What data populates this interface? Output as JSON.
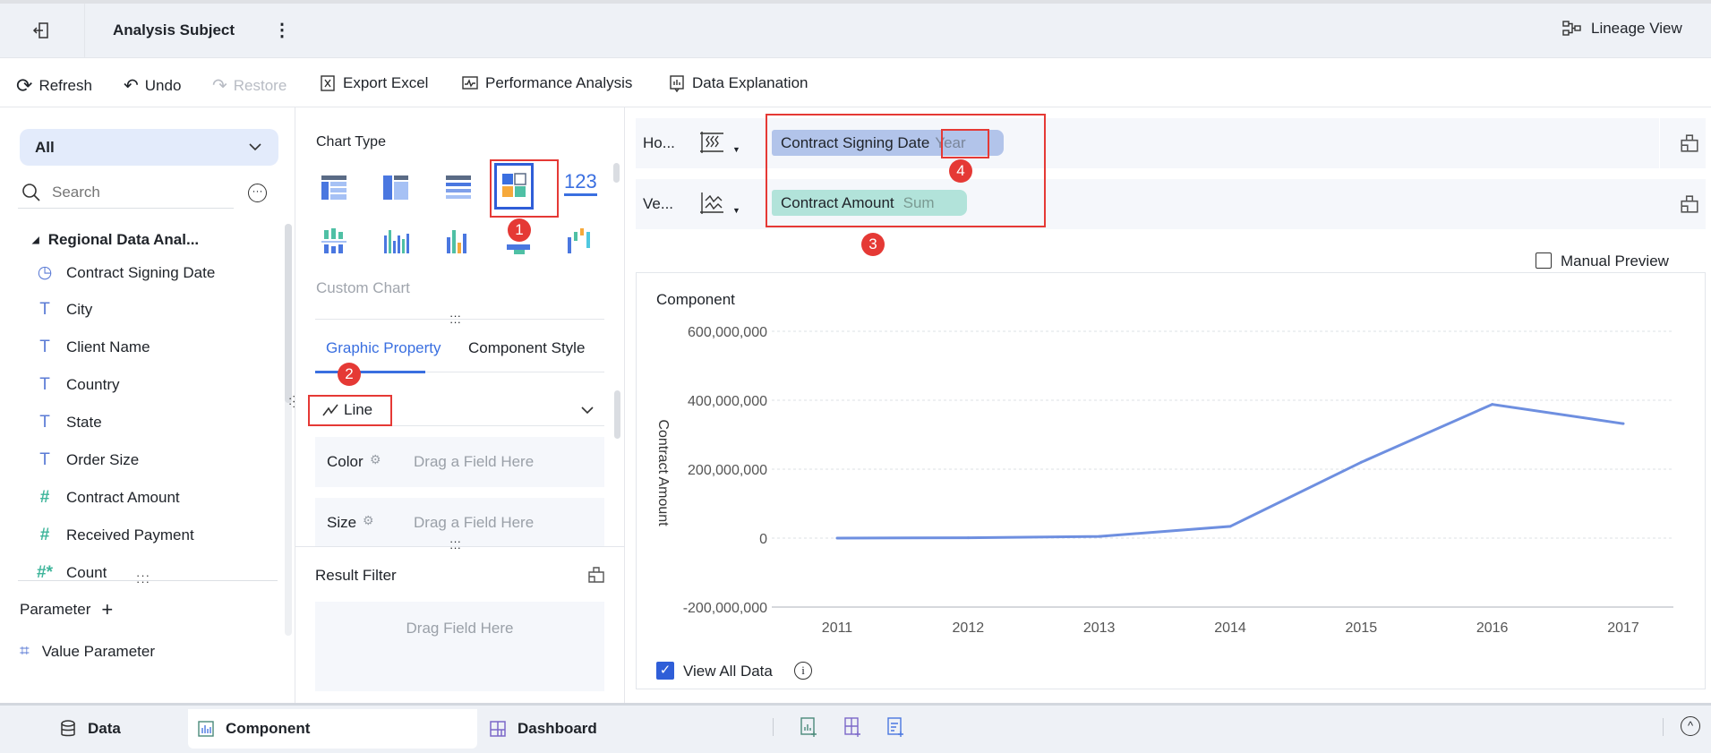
{
  "header": {
    "title": "Analysis Subject",
    "lineage_label": "Lineage View"
  },
  "toolbar": {
    "refresh": "Refresh",
    "undo": "Undo",
    "restore": "Restore",
    "export_excel": "Export Excel",
    "performance_analysis": "Performance Analysis",
    "data_explanation": "Data Explanation"
  },
  "left": {
    "dropdown_value": "All",
    "search_placeholder": "Search",
    "tree_title": "Regional Data Anal...",
    "fields": [
      {
        "label": "Contract Signing Date",
        "type": "date"
      },
      {
        "label": "City",
        "type": "text"
      },
      {
        "label": "Client Name",
        "type": "text"
      },
      {
        "label": "Country",
        "type": "text"
      },
      {
        "label": "State",
        "type": "text"
      },
      {
        "label": "Order Size",
        "type": "formula-text"
      },
      {
        "label": "Contract Amount",
        "type": "number"
      },
      {
        "label": "Received Payment",
        "type": "number"
      },
      {
        "label": "Count",
        "type": "number-calc"
      }
    ],
    "parameter_label": "Parameter",
    "value_parameter": "Value Parameter"
  },
  "mid": {
    "chart_type_label": "Chart Type",
    "chart_type_selected": "custom-chart",
    "custom_chart_label": "Custom Chart",
    "tabs": [
      {
        "label": "Graphic Property",
        "active": true
      },
      {
        "label": "Component Style",
        "active": false
      }
    ],
    "mark_type": "Line",
    "color_label": "Color",
    "size_label": "Size",
    "drag_field": "Drag a Field Here",
    "result_filter": "Result Filter",
    "drag_field_here": "Drag Field Here"
  },
  "right": {
    "horizontal_label": "Ho...",
    "vertical_label": "Ve...",
    "x_field": {
      "name": "Contract Signing Date",
      "agg": "Year"
    },
    "y_field": {
      "name": "Contract Amount",
      "agg": "Sum"
    },
    "manual_preview": "Manual Preview",
    "manual_preview_checked": false,
    "panel_title": "Component",
    "view_all_data": "View All Data",
    "view_all_data_checked": true
  },
  "annotations": [
    "1",
    "2",
    "3",
    "4"
  ],
  "bottom": {
    "data": "Data",
    "component": "Component",
    "dashboard": "Dashboard",
    "active": "Component"
  },
  "colors": {
    "accent": "#3366cc",
    "line": "#6e8fe0",
    "annotation": "#e53935",
    "x_pill": "#b2c4ea",
    "y_pill": "#b2e3da"
  },
  "chart_data": {
    "type": "line",
    "categories": [
      "2011",
      "2012",
      "2013",
      "2014",
      "2015",
      "2016",
      "2017"
    ],
    "series": [
      {
        "values": [
          0,
          1000000,
          5000000,
          34000000,
          220000000,
          388000000,
          332000000
        ]
      }
    ],
    "ylabel": "Contract Amount",
    "xlabel": "",
    "ylim": [
      -200000000,
      600000000
    ],
    "yticks": [
      "600,000,000",
      "400,000,000",
      "200,000,000",
      "0",
      "-200,000,000"
    ],
    "ytick_values": [
      600000000,
      400000000,
      200000000,
      0,
      -200000000
    ],
    "grid": true
  }
}
